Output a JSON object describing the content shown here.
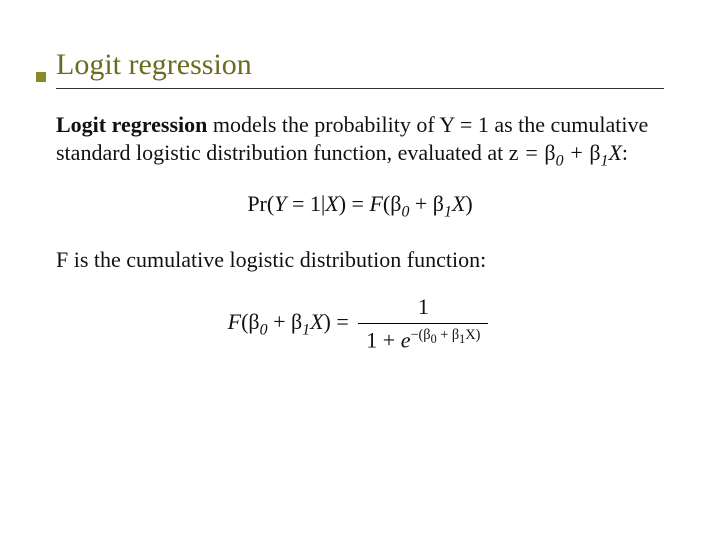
{
  "slide": {
    "accent_color": "#8a8a2a",
    "title_color": "#6b6b1f",
    "text_color": "#111111",
    "background_color": "#ffffff",
    "title_fontsize": 30,
    "body_fontsize": 22,
    "title": "Logit regression",
    "p1_bold": "Logit regression",
    "p1_rest_a": " models the probability of Y = 1 as the cumulative standard logistic distribution function, evaluated at ",
    "p1_inline_eq": "z = β₀ + β₁X",
    "p1_rest_b": ":",
    "eq1_lhs_pr": "Pr",
    "eq1_lhs_paren": "(Y = 1|X)",
    "eq1_eq": " = ",
    "eq1_rhs_F": "F",
    "eq1_rhs_paren": "(β₀ + β₁X)",
    "p2": "F is the cumulative logistic distribution function:",
    "eq2_lhs_F": "F",
    "eq2_lhs_paren": "(β₀ + β₁X)",
    "eq2_eq": " = ",
    "eq2_num": "1",
    "eq2_den_a": "1 + e",
    "eq2_den_exp": "−(β₀ + β₁X)"
  }
}
